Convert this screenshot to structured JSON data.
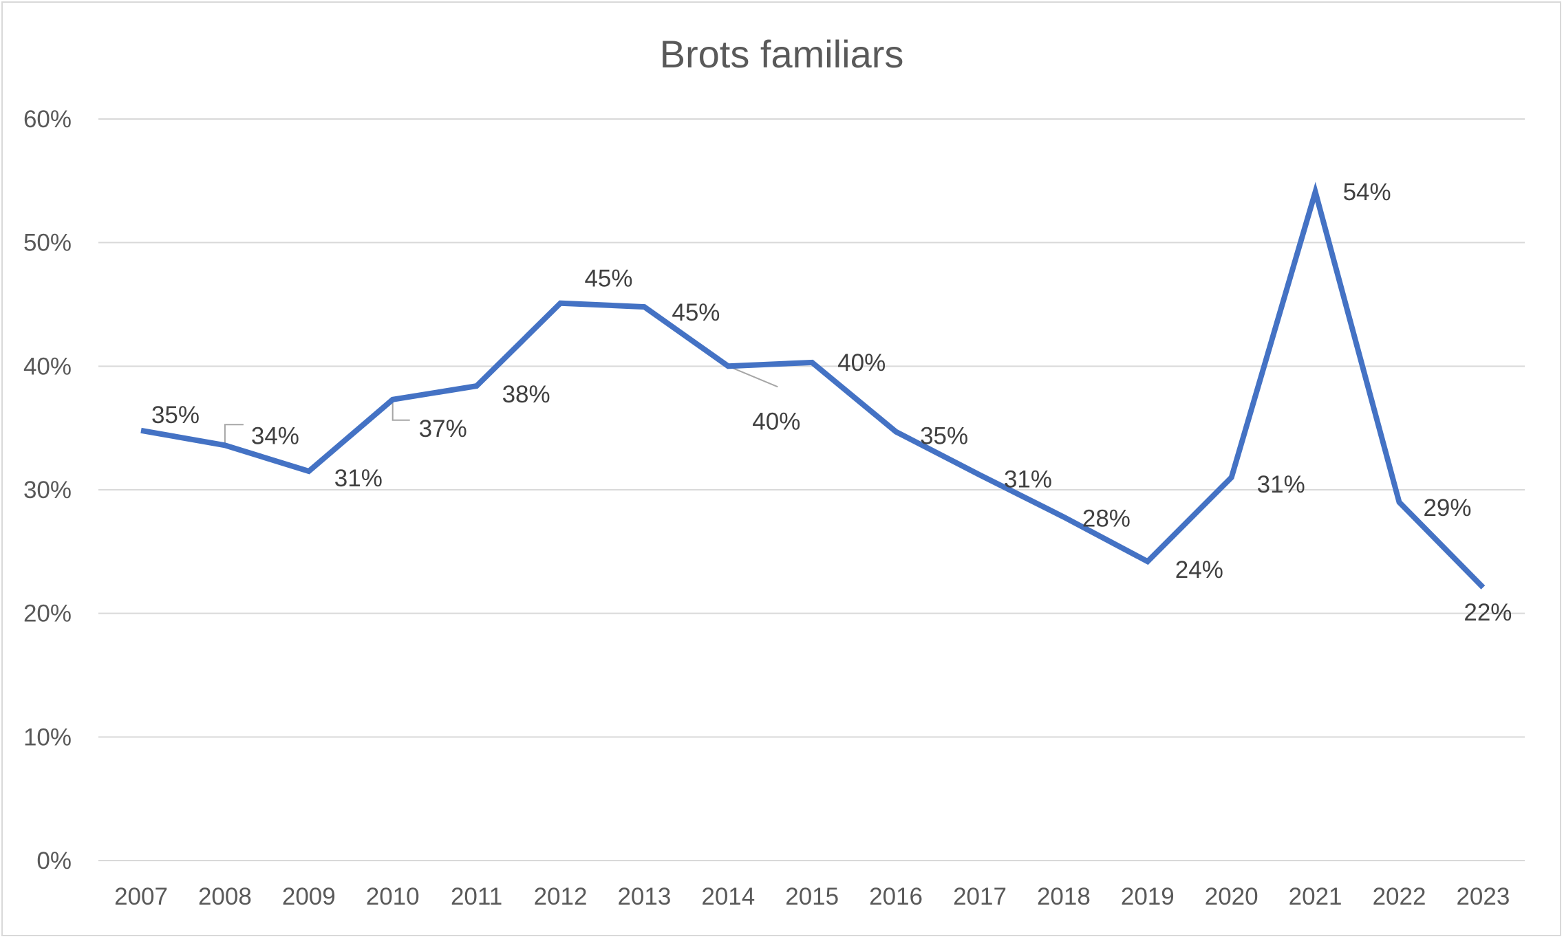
{
  "chart_data": {
    "type": "line",
    "title": "Brots familiars",
    "xlabel": "",
    "ylabel": "",
    "categories": [
      "2007",
      "2008",
      "2009",
      "2010",
      "2011",
      "2012",
      "2013",
      "2014",
      "2015",
      "2016",
      "2017",
      "2018",
      "2019",
      "2020",
      "2021",
      "2022",
      "2023"
    ],
    "series": [
      {
        "values": [
          34.8,
          33.6,
          31.5,
          37.3,
          38.4,
          45.1,
          44.8,
          40.0,
          40.3,
          34.7,
          31.2,
          27.8,
          24.2,
          31.0,
          54.1,
          29.0,
          22.1
        ],
        "labels": [
          "35%",
          "34%",
          "31%",
          "37%",
          "38%",
          "45%",
          "45%",
          "40%",
          "40%",
          "35%",
          "31%",
          "28%",
          "24%",
          "31%",
          "54%",
          "29%",
          "22%"
        ],
        "color": "#4472c4"
      }
    ],
    "ylim": [
      0,
      60
    ],
    "yticks": [
      "0%",
      "10%",
      "20%",
      "30%",
      "40%",
      "50%",
      "60%"
    ],
    "grid": true,
    "legend": "none",
    "gridline_color": "#d9d9d9",
    "leader_line_color": "#a6a6a6"
  }
}
